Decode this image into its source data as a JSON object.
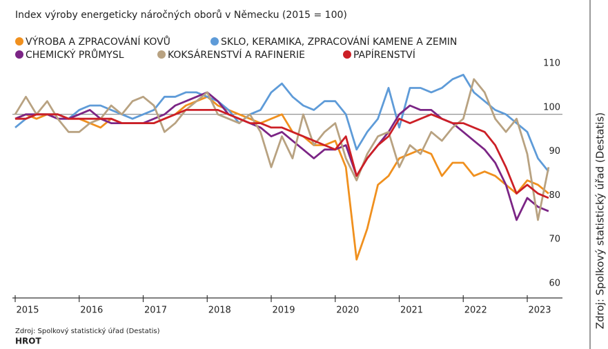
{
  "chart_data": {
    "type": "line",
    "title": "Index výroby energeticky náročných oborů v Německu (2015 = 100)",
    "source": "Zdroj: Spolkový statistický úřad (Destatis)",
    "brand": "HROT",
    "side_note": "Zdroj: Spolkový statistický úřad (Destatis)",
    "categories": [
      "2015",
      null,
      null,
      null,
      null,
      null,
      "2016",
      null,
      null,
      null,
      null,
      null,
      "2017",
      null,
      null,
      null,
      null,
      null,
      "2018",
      null,
      null,
      null,
      null,
      null,
      "2019",
      null,
      null,
      null,
      null,
      null,
      "2020",
      null,
      null,
      null,
      null,
      null,
      "2021",
      null,
      null,
      null,
      null,
      null,
      "2022",
      null,
      null,
      null,
      null,
      null,
      "2023",
      null,
      null
    ],
    "series": [
      {
        "name": "VÝROBA A ZPRACOVÁNÍ KOVŮ",
        "color": "#f0901e",
        "values": [
          99,
          100,
          99,
          100,
          100,
          99,
          99,
          98,
          97,
          99,
          98,
          98,
          98,
          98,
          99,
          100,
          102,
          103,
          104,
          102,
          101,
          100,
          99,
          98,
          99,
          100,
          96,
          95,
          93,
          93,
          94,
          88,
          67,
          74,
          84,
          86,
          90,
          91,
          92,
          91,
          86,
          89,
          89,
          86,
          87,
          86,
          84,
          82,
          85,
          84,
          82
        ]
      },
      {
        "name": "SKLO, KERAMIKA, ZPRACOVÁNÍ KAMENE A ZEMIN",
        "color": "#5e9bd8",
        "values": [
          97,
          99,
          100,
          100,
          100,
          99,
          101,
          102,
          102,
          101,
          100,
          99,
          100,
          101,
          104,
          104,
          105,
          105,
          104,
          103,
          101,
          98,
          100,
          101,
          105,
          107,
          104,
          102,
          101,
          103,
          103,
          100,
          92,
          96,
          99,
          106,
          97,
          106,
          106,
          105,
          106,
          108,
          109,
          105,
          103,
          101,
          100,
          98,
          96,
          90,
          87
        ]
      },
      {
        "name": "CHEMICKÝ PRŮMYSL",
        "color": "#7b2585",
        "values": [
          99,
          100,
          100,
          100,
          99,
          99,
          100,
          101,
          99,
          98,
          98,
          98,
          98,
          99,
          100,
          102,
          103,
          104,
          105,
          103,
          100,
          99,
          98,
          97,
          95,
          96,
          94,
          92,
          90,
          92,
          92,
          93,
          86,
          90,
          93,
          96,
          100,
          102,
          101,
          101,
          99,
          98,
          96,
          94,
          92,
          89,
          84,
          76,
          81,
          79,
          78
        ]
      },
      {
        "name": "KOKSÁRENSTVÍ A RAFINERIE",
        "color": "#b8a281",
        "values": [
          100,
          104,
          100,
          103,
          99,
          96,
          96,
          98,
          99,
          102,
          100,
          103,
          104,
          102,
          96,
          98,
          101,
          103,
          105,
          100,
          99,
          98,
          100,
          96,
          88,
          95,
          90,
          100,
          93,
          96,
          98,
          90,
          85,
          91,
          95,
          96,
          88,
          93,
          91,
          96,
          94,
          97,
          99,
          108,
          105,
          99,
          96,
          99,
          91,
          76,
          88
        ]
      },
      {
        "name": "PAPÍRENSTVÍ",
        "color": "#cc1f26",
        "values": [
          99,
          99,
          100,
          100,
          100,
          99,
          99,
          99,
          99,
          99,
          98,
          98,
          98,
          98,
          99,
          100,
          101,
          101,
          101,
          101,
          100,
          99,
          98,
          98,
          97,
          97,
          96,
          95,
          94,
          93,
          92,
          95,
          86,
          90,
          93,
          95,
          99,
          98,
          99,
          100,
          99,
          98,
          98,
          97,
          96,
          93,
          88,
          82,
          84,
          82,
          81
        ]
      }
    ],
    "ylim": [
      60,
      110
    ],
    "yticks": [
      60,
      70,
      80,
      90,
      100,
      110
    ],
    "hline": 100
  }
}
